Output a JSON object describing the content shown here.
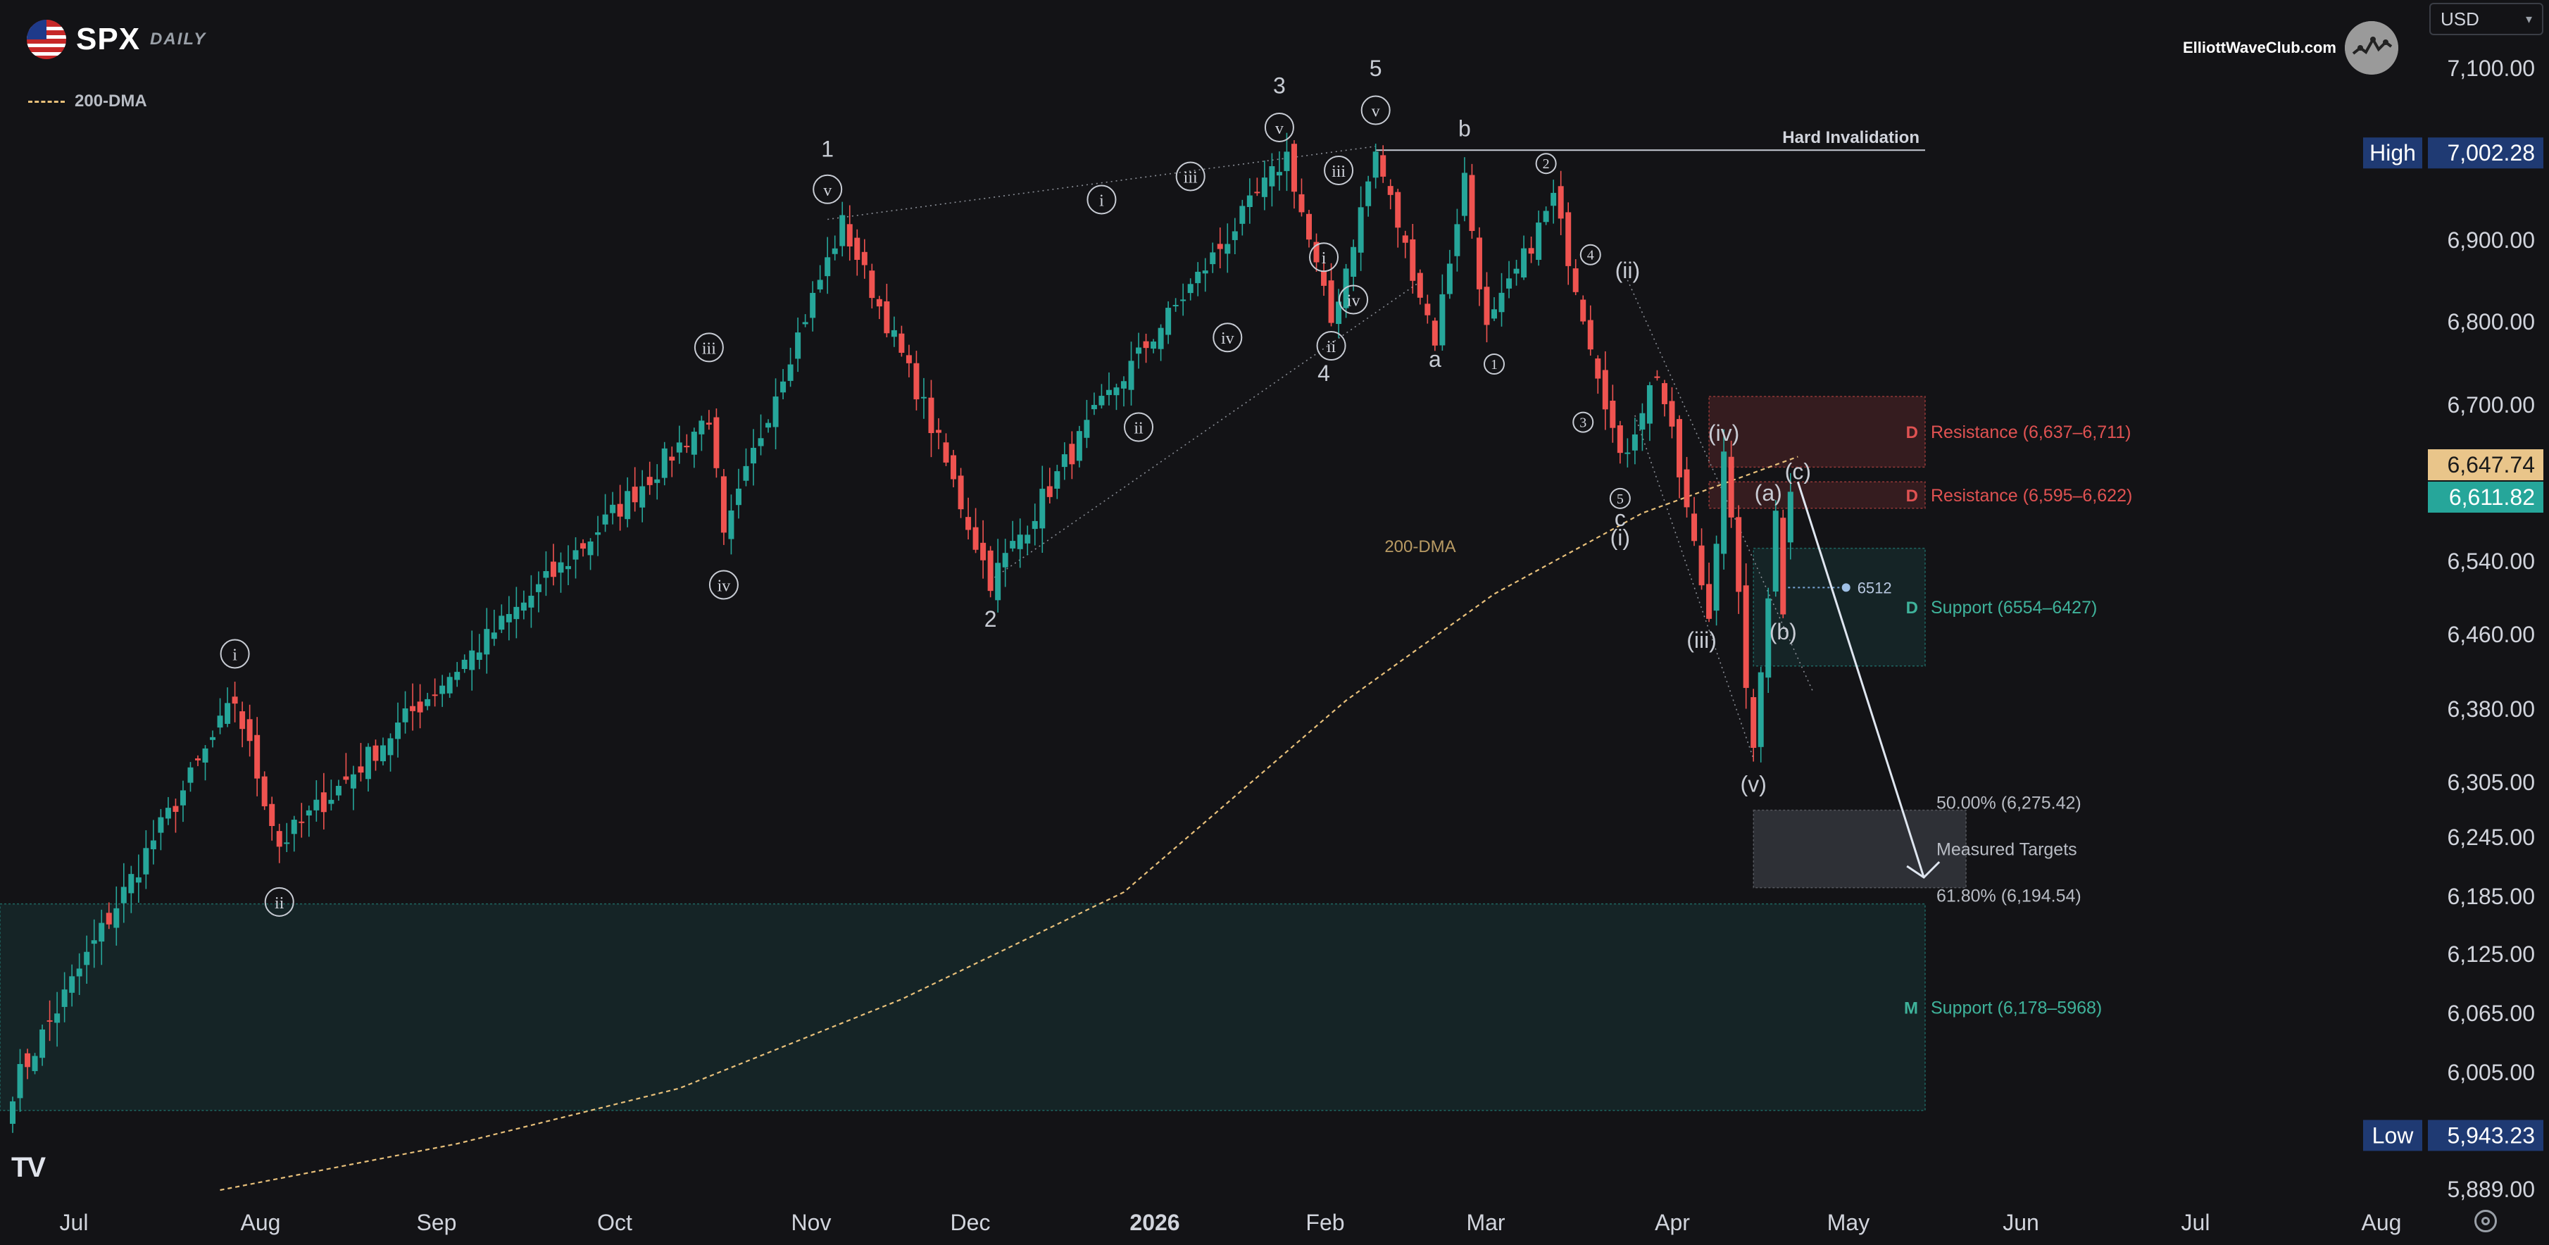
{
  "header": {
    "ticker": "SPX",
    "timeframe": "DAILY",
    "brand": "ElliottWaveClub.com",
    "currency": "USD"
  },
  "legend": {
    "ma_label": "200-DMA"
  },
  "colors": {
    "background": "#131316",
    "up": "#26a69a",
    "down": "#ef5350",
    "ma": "#e8c07a",
    "resistance": "#e05252",
    "support": "#3fb39b",
    "panel": "#f4f5f7",
    "label_bg": "#1f3a73",
    "target_zone": "#40444d"
  },
  "icons": [
    "us-flag-icon",
    "brand-badge-icon",
    "tradingview-logo-icon",
    "settings-icon",
    "chevron-down-icon"
  ],
  "chart_data": {
    "type": "candlestick",
    "title": "SPX",
    "subtitle": "DAILY",
    "ylim": [
      5889,
      7170
    ],
    "y_ticks": [
      {
        "value": 7100,
        "label": "7,100.00"
      },
      {
        "value": 6900,
        "label": "6,900.00"
      },
      {
        "value": 6800,
        "label": "6,800.00"
      },
      {
        "value": 6700,
        "label": "6,700.00"
      },
      {
        "value": 6540,
        "label": "6,540.00"
      },
      {
        "value": 6460,
        "label": "6,460.00"
      },
      {
        "value": 6380,
        "label": "6,380.00"
      },
      {
        "value": 6305,
        "label": "6,305.00"
      },
      {
        "value": 6245,
        "label": "6,245.00"
      },
      {
        "value": 6185,
        "label": "6,185.00"
      },
      {
        "value": 6125,
        "label": "6,125.00"
      },
      {
        "value": 6065,
        "label": "6,065.00"
      },
      {
        "value": 6005,
        "label": "6,005.00"
      },
      {
        "value": 5889,
        "label": "5,889.00"
      }
    ],
    "x_labels": [
      "Jul",
      "Aug",
      "Sep",
      "Oct",
      "Nov",
      "Dec",
      "2026",
      "Feb",
      "Mar",
      "Apr",
      "May",
      "Jun",
      "Jul",
      "Aug"
    ],
    "x_label_bold": "2026",
    "price_tags": [
      {
        "name": "high",
        "label": "High",
        "value": "7,002.28",
        "y": 7002.28
      },
      {
        "name": "low",
        "label": "Low",
        "value": "5,943.23",
        "y": 5943.23
      },
      {
        "name": "ma-current",
        "label": "",
        "value": "6,647.74",
        "y": 6647.74
      },
      {
        "name": "last-price",
        "label": "",
        "value": "6,611.82",
        "y": 6611.82
      }
    ],
    "anchors": [
      {
        "name": "jul-start",
        "day": 0,
        "price": 5990
      },
      {
        "name": "late-jul",
        "day": 30,
        "price": 6390
      },
      {
        "name": "aug-low",
        "day": 36,
        "price": 6238
      },
      {
        "name": "sep-high",
        "day": 94,
        "price": 6690
      },
      {
        "name": "oct-low",
        "day": 96,
        "price": 6560
      },
      {
        "name": "oct-high-1",
        "day": 112,
        "price": 6920
      },
      {
        "name": "nov-low-2",
        "day": 132,
        "price": 6520
      },
      {
        "name": "dec-high-3",
        "day": 172,
        "price": 7000
      },
      {
        "name": "dec-low-4",
        "day": 178,
        "price": 6800
      },
      {
        "name": "jan-high-5",
        "day": 184,
        "price": 7002.28
      },
      {
        "name": "jan-low-a",
        "day": 192,
        "price": 6780
      },
      {
        "name": "feb-high-b",
        "day": 196,
        "price": 6975
      },
      {
        "name": "feb-low",
        "day": 199,
        "price": 6790
      },
      {
        "name": "feb-high-2",
        "day": 208,
        "price": 6950
      },
      {
        "name": "mar-low-c",
        "day": 217,
        "price": 6640
      },
      {
        "name": "mar-high",
        "day": 222,
        "price": 6740
      },
      {
        "name": "mar-low-iii",
        "day": 229,
        "price": 6480
      },
      {
        "name": "mar-high-iv",
        "day": 231,
        "price": 6660
      },
      {
        "name": "mar-low-v",
        "day": 235,
        "price": 6330
      },
      {
        "name": "apr-a",
        "day": 238,
        "price": 6600
      },
      {
        "name": "apr-b",
        "day": 239,
        "price": 6480
      },
      {
        "name": "apr-last",
        "day": 240,
        "price": 6611.82
      }
    ],
    "ma_200": [
      {
        "day": 28,
        "price": 5889
      },
      {
        "day": 60,
        "price": 5935
      },
      {
        "day": 90,
        "price": 5990
      },
      {
        "day": 120,
        "price": 6080
      },
      {
        "day": 150,
        "price": 6190
      },
      {
        "day": 180,
        "price": 6390
      },
      {
        "day": 200,
        "price": 6505
      },
      {
        "day": 220,
        "price": 6590
      },
      {
        "day": 241,
        "price": 6647.74
      }
    ],
    "zones": [
      {
        "name": "resistance-upper",
        "kind": "resistance",
        "tag": "D",
        "label": "Resistance (6,637–6,711)",
        "from": 6637,
        "to": 6711
      },
      {
        "name": "resistance-lower",
        "kind": "resistance",
        "tag": "D",
        "label": "Resistance (6,595–6,622)",
        "from": 6595,
        "to": 6622
      },
      {
        "name": "support-daily",
        "kind": "support",
        "tag": "D",
        "label": "Support (6554–6427)",
        "from": 6427,
        "to": 6554
      },
      {
        "name": "support-monthly",
        "kind": "support",
        "tag": "M",
        "label": "Support (6,178–5968)",
        "from": 5968,
        "to": 6178
      },
      {
        "name": "measured-targets",
        "kind": "target",
        "tag": "",
        "label": "Measured Targets",
        "from": 6194.54,
        "to": 6275.42
      }
    ],
    "fib_levels": [
      {
        "label": "50.00% (6,275.42)",
        "value": 6275.42
      },
      {
        "label": "61.80% (6,194.54)",
        "value": 6194.54
      }
    ],
    "hard_invalidation": {
      "label": "Hard Invalidation",
      "value": 7002.28
    },
    "level_6512": {
      "label": "6512",
      "value": 6512
    },
    "ma_chart_label": "200-DMA",
    "wave_labels": [
      {
        "text": "i",
        "circled": true,
        "day": 30,
        "price": 6440
      },
      {
        "text": "ii",
        "circled": true,
        "day": 36,
        "price": 6180
      },
      {
        "text": "iii",
        "circled": true,
        "day": 94,
        "price": 6770
      },
      {
        "text": "iv",
        "circled": true,
        "day": 96,
        "price": 6515
      },
      {
        "text": "1",
        "circled": false,
        "day": 110,
        "price": 7006
      },
      {
        "text": "v",
        "circled": true,
        "day": 110,
        "price": 6960
      },
      {
        "text": "2",
        "circled": false,
        "day": 132,
        "price": 6477
      },
      {
        "text": "i",
        "circled": true,
        "day": 147,
        "price": 6948
      },
      {
        "text": "ii",
        "circled": true,
        "day": 152,
        "price": 6678
      },
      {
        "text": "iii",
        "circled": true,
        "day": 159,
        "price": 6975
      },
      {
        "text": "iv",
        "circled": true,
        "day": 164,
        "price": 6782
      },
      {
        "text": "3",
        "circled": false,
        "day": 171,
        "price": 7080
      },
      {
        "text": "v",
        "circled": true,
        "day": 171,
        "price": 7032
      },
      {
        "text": "i",
        "circled": true,
        "day": 177,
        "price": 6880
      },
      {
        "text": "iii",
        "circled": true,
        "day": 179,
        "price": 6982
      },
      {
        "text": "iv",
        "circled": true,
        "day": 181,
        "price": 6828
      },
      {
        "text": "ii",
        "circled": true,
        "day": 178,
        "price": 6772
      },
      {
        "text": "4",
        "circled": false,
        "day": 177,
        "price": 6738
      },
      {
        "text": "5",
        "circled": false,
        "day": 184,
        "price": 7100
      },
      {
        "text": "v",
        "circled": true,
        "day": 184,
        "price": 7052
      },
      {
        "text": "b",
        "circled": false,
        "day": 196,
        "price": 7030
      },
      {
        "text": "a",
        "circled": false,
        "day": 192,
        "price": 6755
      },
      {
        "text": "2",
        "circled": true,
        "day": 207,
        "price": 6990
      },
      {
        "text": "1",
        "circled": true,
        "day": 200,
        "price": 6750
      },
      {
        "text": "4",
        "circled": true,
        "day": 213,
        "price": 6883
      },
      {
        "text": "3",
        "circled": true,
        "day": 212,
        "price": 6683
      },
      {
        "text": "(ii)",
        "circled": false,
        "day": 218,
        "price": 6863
      },
      {
        "text": "5",
        "circled": true,
        "day": 217,
        "price": 6605
      },
      {
        "text": "c",
        "circled": false,
        "day": 217,
        "price": 6584
      },
      {
        "text": "(i)",
        "circled": false,
        "day": 217,
        "price": 6564
      },
      {
        "text": "(iv)",
        "circled": false,
        "day": 231,
        "price": 6671
      },
      {
        "text": "(iii)",
        "circled": false,
        "day": 228,
        "price": 6454
      },
      {
        "text": "(v)",
        "circled": false,
        "day": 235,
        "price": 6303
      },
      {
        "text": "(a)",
        "circled": false,
        "day": 237,
        "price": 6610
      },
      {
        "text": "(c)",
        "circled": false,
        "day": 241,
        "price": 6632
      },
      {
        "text": "(b)",
        "circled": false,
        "day": 239,
        "price": 6463
      }
    ],
    "projection": {
      "from_day": 241,
      "from_price": 6622,
      "to_day": 258,
      "to_price": 6205
    }
  }
}
